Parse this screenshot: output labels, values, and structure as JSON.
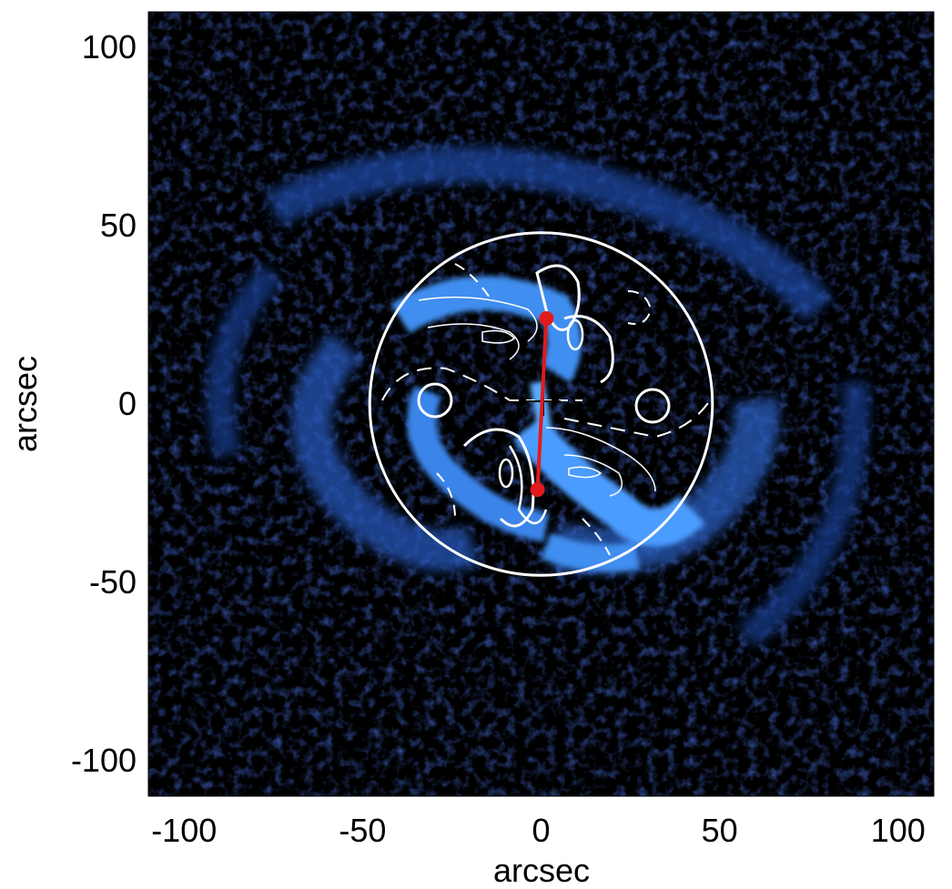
{
  "figure": {
    "xlabel": "arcsec",
    "ylabel": "arcsec",
    "xlim": [
      -110,
      110
    ],
    "ylim": [
      -110,
      110
    ],
    "x_ticks": [
      {
        "value": -100,
        "label": "-100"
      },
      {
        "value": -50,
        "label": "-50"
      },
      {
        "value": 0,
        "label": "0"
      },
      {
        "value": 50,
        "label": "50"
      },
      {
        "value": 100,
        "label": "100"
      }
    ],
    "y_ticks": [
      {
        "value": 100,
        "label": "100"
      },
      {
        "value": 50,
        "label": "50"
      },
      {
        "value": 0,
        "label": "0"
      },
      {
        "value": -50,
        "label": "-50"
      },
      {
        "value": -100,
        "label": "-100"
      }
    ],
    "aperture_radius_arcsec": 48,
    "red_markers": [
      {
        "x": 1.5,
        "y": 24
      },
      {
        "x": -1,
        "y": -24
      }
    ],
    "colors": {
      "background": "#000000",
      "emission": "#2a64c8",
      "emission_bright": "#4fa3ff",
      "contour": "#ffffff",
      "marker": "#e01b1b"
    }
  }
}
